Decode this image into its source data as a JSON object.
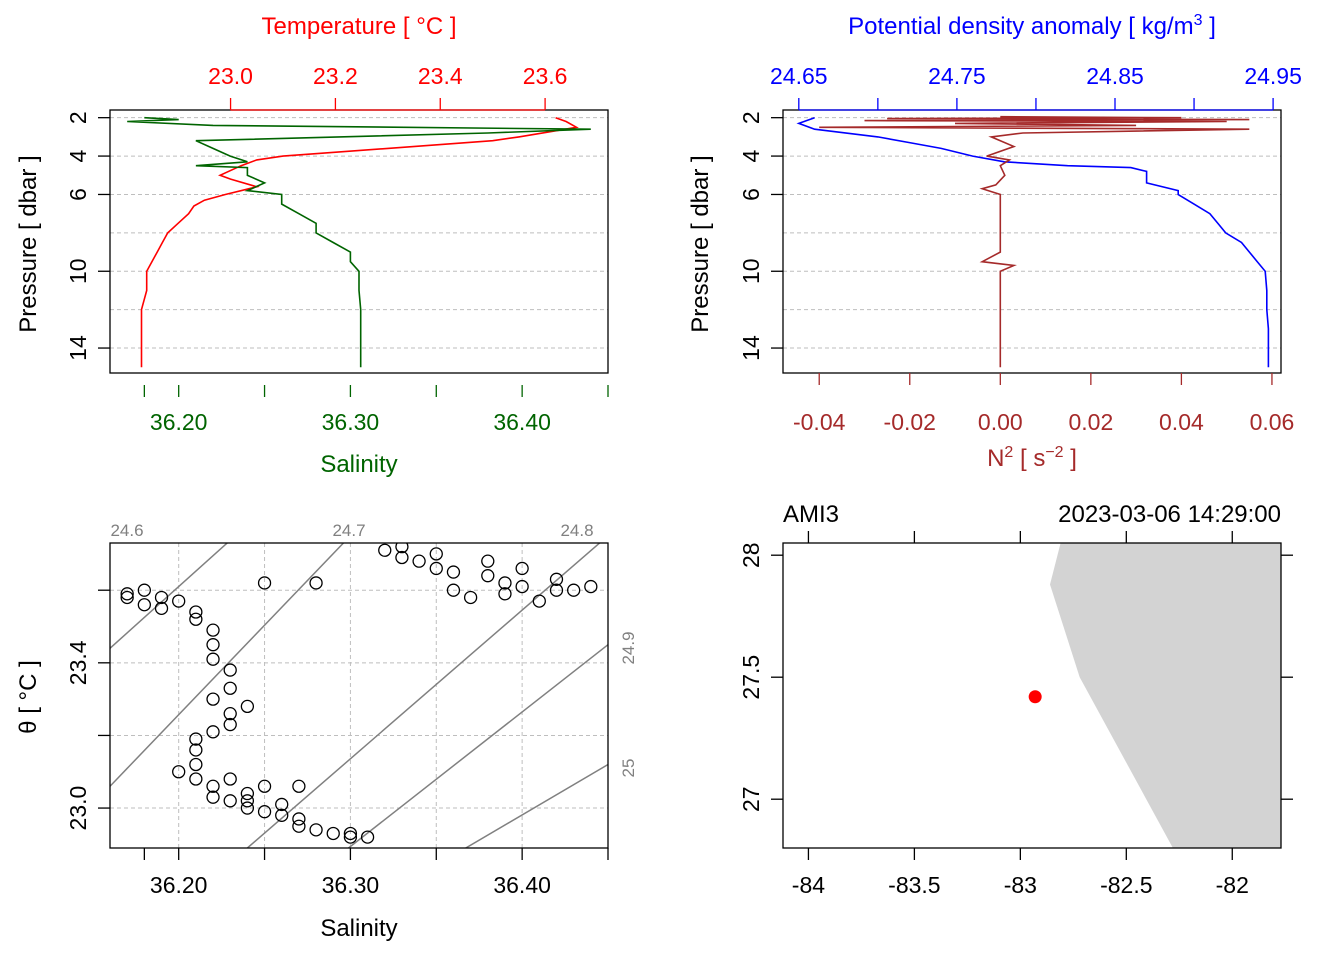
{
  "colors": {
    "temperature": "#ff0000",
    "salinity": "#006400",
    "density": "#0000ff",
    "n2": "#a52a2a",
    "grid": "#bebebe",
    "isopycnal": "#808080",
    "land": "#d3d3d3",
    "station": "#ff0000"
  },
  "chart_data": [
    {
      "id": "profile_TS",
      "type": "line",
      "top_axis_title": "Temperature [ °C ]",
      "bottom_axis_title": "Salinity",
      "left_axis_title": "Pressure [ dbar ]",
      "top_ticks": [
        "23.0",
        "23.2",
        "23.4",
        "23.6"
      ],
      "top_tick_values": [
        23.0,
        23.2,
        23.4,
        23.6
      ],
      "bottom_ticks": [
        "36.20",
        "36.30",
        "36.40"
      ],
      "bottom_tick_values": [
        36.2,
        36.3,
        36.4
      ],
      "left_ticks": [
        "2",
        "4",
        "6",
        "10",
        "14"
      ],
      "left_tick_values": [
        2,
        4,
        6,
        10,
        14
      ],
      "xlim_temperature": [
        22.77,
        23.72
      ],
      "xlim_salinity": [
        36.16,
        36.45
      ],
      "ylim_pressure": [
        15.3,
        1.6
      ],
      "series": [
        {
          "name": "Temperature",
          "pressure": [
            2.0,
            2.2,
            2.5,
            3.0,
            3.2,
            3.6,
            4.0,
            4.2,
            4.5,
            5.0,
            5.2,
            5.6,
            6.0,
            6.3,
            6.6,
            7.0,
            7.5,
            8.0,
            8.5,
            9.0,
            9.5,
            10.0,
            11.0,
            12.0,
            13.0,
            14.0,
            15.0
          ],
          "values": [
            23.62,
            23.64,
            23.66,
            23.55,
            23.5,
            23.3,
            23.1,
            23.05,
            23.02,
            22.98,
            23.0,
            23.05,
            22.99,
            22.95,
            22.93,
            22.92,
            22.9,
            22.88,
            22.87,
            22.86,
            22.85,
            22.84,
            22.84,
            22.83,
            22.83,
            22.83,
            22.83
          ]
        },
        {
          "name": "Salinity",
          "pressure": [
            2.0,
            2.1,
            2.2,
            2.4,
            2.6,
            2.8,
            3.2,
            3.6,
            4.0,
            4.3,
            4.5,
            4.6,
            5.0,
            5.4,
            5.8,
            6.0,
            6.5,
            7.0,
            7.5,
            8.0,
            8.5,
            9.0,
            9.5,
            10.0,
            11.0,
            12.0,
            13.0,
            14.0,
            15.0
          ],
          "values": [
            36.18,
            36.2,
            36.17,
            36.22,
            36.44,
            36.38,
            36.21,
            36.22,
            36.23,
            36.24,
            36.21,
            36.24,
            36.24,
            36.25,
            36.24,
            36.26,
            36.26,
            36.27,
            36.28,
            36.28,
            36.29,
            36.3,
            36.3,
            36.305,
            36.305,
            36.306,
            36.306,
            36.306,
            36.306
          ]
        }
      ]
    },
    {
      "id": "profile_density_N2",
      "type": "line",
      "top_axis_title": "Potential density anomaly [ kg/m",
      "top_axis_title_sup": "3",
      "top_axis_title_end": " ]",
      "bottom_axis_title": "N",
      "bottom_axis_title_sup": "2",
      "bottom_axis_title_mid": " [ s",
      "bottom_axis_title_sup2": "−2",
      "bottom_axis_title_end": " ]",
      "left_axis_title": "Pressure [ dbar ]",
      "top_ticks": [
        "24.65",
        "24.75",
        "24.85",
        "24.95"
      ],
      "top_tick_values": [
        24.65,
        24.75,
        24.85,
        24.95
      ],
      "top_minor_tick_values": [
        24.7,
        24.8,
        24.9
      ],
      "bottom_ticks": [
        "-0.04",
        "-0.02",
        "0.00",
        "0.02",
        "0.04",
        "0.06"
      ],
      "bottom_tick_values": [
        -0.04,
        -0.02,
        0.0,
        0.02,
        0.04,
        0.06
      ],
      "left_ticks": [
        "2",
        "4",
        "6",
        "10",
        "14"
      ],
      "left_tick_values": [
        2,
        4,
        6,
        10,
        14
      ],
      "xlim_density": [
        24.64,
        24.955
      ],
      "xlim_n2": [
        -0.048,
        0.062
      ],
      "ylim_pressure": [
        15.3,
        1.6
      ],
      "series": [
        {
          "name": "Potential density anomaly",
          "pressure": [
            2.0,
            2.3,
            2.6,
            3.0,
            3.3,
            3.6,
            4.0,
            4.3,
            4.5,
            4.6,
            4.8,
            5.0,
            5.4,
            5.8,
            6.0,
            6.5,
            7.0,
            7.5,
            8.0,
            8.5,
            9.0,
            9.5,
            10.0,
            11.0,
            12.0,
            13.0,
            14.0,
            15.0
          ],
          "values": [
            24.66,
            24.65,
            24.66,
            24.7,
            24.72,
            24.74,
            24.76,
            24.78,
            24.82,
            24.86,
            24.87,
            24.87,
            24.87,
            24.89,
            24.89,
            24.9,
            24.91,
            24.915,
            24.92,
            24.93,
            24.935,
            24.94,
            24.945,
            24.946,
            24.946,
            24.947,
            24.947,
            24.947
          ]
        },
        {
          "name": "N2",
          "pressure": [
            1.95,
            2.0,
            2.05,
            2.1,
            2.15,
            2.2,
            2.3,
            2.4,
            2.5,
            2.6,
            2.8,
            3.0,
            3.5,
            4.0,
            4.2,
            4.5,
            5.0,
            5.5,
            5.7,
            6.0,
            7.0,
            8.0,
            9.0,
            9.5,
            9.7,
            10.0,
            11.0,
            12.0,
            13.0,
            14.0,
            15.0
          ],
          "values": [
            0.0,
            0.04,
            -0.025,
            0.055,
            -0.03,
            0.05,
            -0.01,
            0.03,
            -0.04,
            0.055,
            0.005,
            -0.002,
            0.003,
            -0.003,
            0.002,
            0.0,
            0.001,
            -0.001,
            -0.004,
            0.0,
            0.0,
            0.0,
            0.0,
            -0.004,
            0.003,
            0.0,
            0.0,
            0.0,
            0.0,
            0.0,
            0.0
          ]
        }
      ]
    },
    {
      "id": "TS_diagram",
      "type": "scatter",
      "xlabel": "Salinity",
      "ylabel": "θ [ °C ]",
      "x_ticks": [
        "36.20",
        "36.30",
        "36.40"
      ],
      "x_tick_values": [
        36.2,
        36.3,
        36.4
      ],
      "y_ticks": [
        "23.0",
        "23.4"
      ],
      "y_tick_values": [
        23.0,
        23.4
      ],
      "xlim": [
        36.16,
        36.45
      ],
      "ylim": [
        22.89,
        23.73
      ],
      "isopycnal_labels_top": [
        "24.6",
        "24.7",
        "24.8"
      ],
      "isopycnal_labels_right": [
        "24.9",
        "25"
      ],
      "isopycnals": [
        {
          "sigma": 24.6,
          "points": [
            [
              36.16,
              23.44
            ],
            [
              36.24,
              23.78
            ]
          ]
        },
        {
          "sigma": 24.7,
          "points": [
            [
              36.16,
              23.06
            ],
            [
              36.3,
              23.75
            ]
          ]
        },
        {
          "sigma": 24.8,
          "points": [
            [
              36.24,
              22.89
            ],
            [
              36.45,
              23.75
            ]
          ]
        },
        {
          "sigma": 24.9,
          "points": [
            [
              36.28,
              22.82
            ],
            [
              36.45,
              23.45
            ]
          ]
        },
        {
          "sigma": 25.0,
          "points": [
            [
              36.36,
              22.87
            ],
            [
              36.45,
              23.12
            ]
          ]
        }
      ],
      "points_x": [
        36.17,
        36.18,
        36.19,
        36.2,
        36.17,
        36.18,
        36.19,
        36.21,
        36.21,
        36.22,
        36.22,
        36.22,
        36.23,
        36.23,
        36.22,
        36.24,
        36.23,
        36.23,
        36.22,
        36.21,
        36.21,
        36.21,
        36.2,
        36.21,
        36.22,
        36.22,
        36.23,
        36.24,
        36.25,
        36.26,
        36.27,
        36.24,
        36.25,
        36.23,
        36.24,
        36.26,
        36.27,
        36.28,
        36.29,
        36.3,
        36.31,
        36.3,
        36.27,
        36.25,
        36.28,
        36.32,
        36.33,
        36.34,
        36.35,
        36.36,
        36.38,
        36.39,
        36.4,
        36.42,
        36.43,
        36.44,
        36.37,
        36.41,
        36.35,
        36.38,
        36.33,
        36.4,
        36.42,
        36.36,
        36.39
      ],
      "points_y": [
        23.59,
        23.6,
        23.58,
        23.57,
        23.58,
        23.56,
        23.55,
        23.54,
        23.52,
        23.49,
        23.45,
        23.41,
        23.38,
        23.33,
        23.3,
        23.28,
        23.26,
        23.23,
        23.21,
        23.19,
        23.16,
        23.12,
        23.1,
        23.08,
        23.06,
        23.03,
        23.02,
        23.0,
        22.99,
        22.98,
        22.97,
        23.04,
        23.06,
        23.08,
        23.02,
        23.01,
        22.95,
        22.94,
        22.93,
        22.92,
        22.92,
        22.93,
        23.06,
        23.62,
        23.62,
        23.71,
        23.69,
        23.68,
        23.66,
        23.65,
        23.64,
        23.62,
        23.61,
        23.6,
        23.6,
        23.61,
        23.58,
        23.57,
        23.7,
        23.68,
        23.72,
        23.66,
        23.63,
        23.6,
        23.59
      ]
    },
    {
      "id": "station_map",
      "type": "scatter",
      "station_name": "AMI3",
      "datetime": "2023-03-06 14:29:00",
      "x_ticks": [
        "-84",
        "-83.5",
        "-83",
        "-82.5",
        "-82"
      ],
      "x_tick_values": [
        -84,
        -83.5,
        -83,
        -82.5,
        -82
      ],
      "y_ticks": [
        "27",
        "27.5",
        "28"
      ],
      "y_tick_values": [
        27,
        27.5,
        28
      ],
      "xlim": [
        -84.12,
        -81.77
      ],
      "ylim": [
        26.8,
        28.05
      ],
      "station_lon": -82.93,
      "station_lat": 27.42,
      "land_polygon": [
        [
          -82.81,
          28.05
        ],
        [
          -82.86,
          27.88
        ],
        [
          -82.72,
          27.5
        ],
        [
          -82.28,
          26.8
        ],
        [
          -81.77,
          26.8
        ],
        [
          -81.77,
          28.05
        ]
      ]
    }
  ]
}
